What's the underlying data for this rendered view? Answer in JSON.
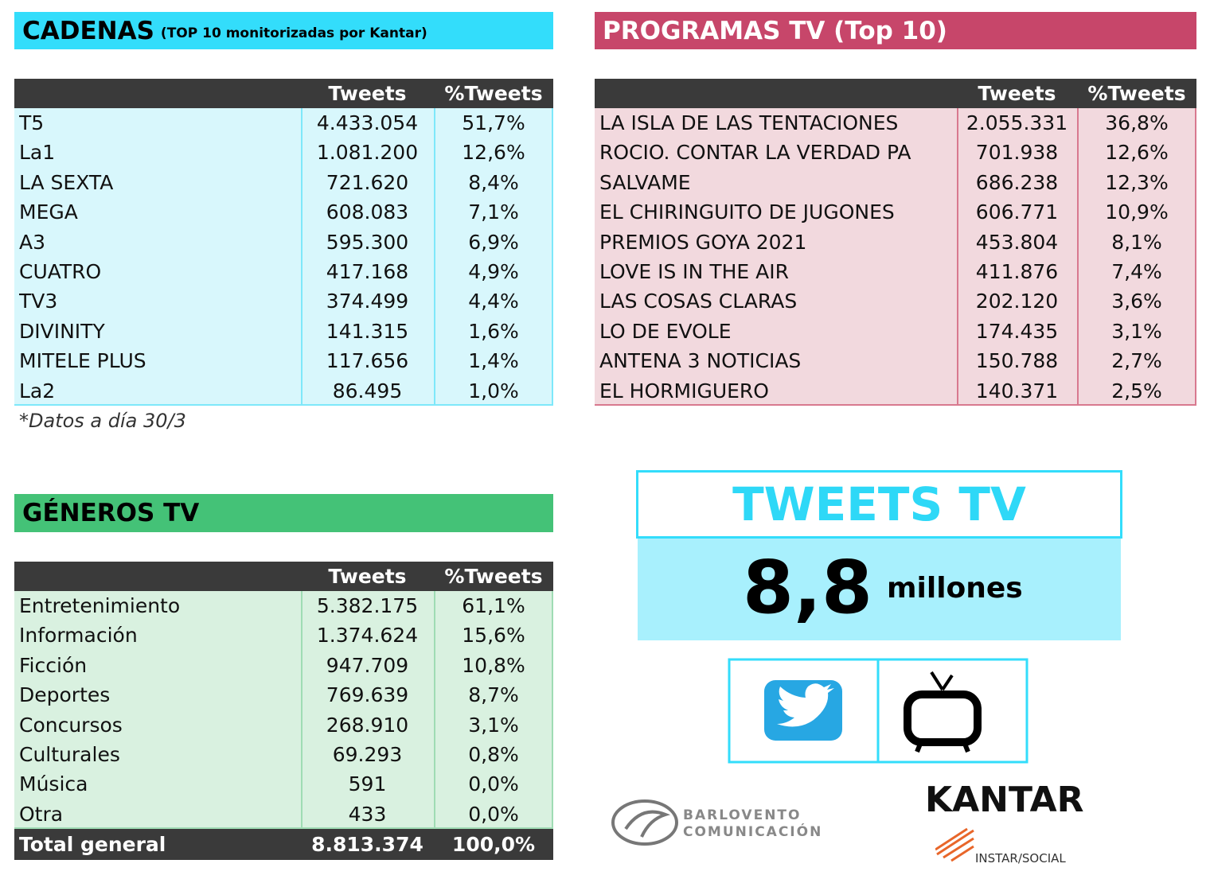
{
  "cadenas": {
    "title": "CADENAS",
    "subtitle": "(TOP 10 monitorizadas por Kantar)",
    "header": [
      "Tweets",
      "%Tweets"
    ],
    "rows": [
      [
        "T5",
        "4.433.054",
        "51,7%"
      ],
      [
        "La1",
        "1.081.200",
        "12,6%"
      ],
      [
        "LA SEXTA",
        "721.620",
        "8,4%"
      ],
      [
        "MEGA",
        "608.083",
        "7,1%"
      ],
      [
        "A3",
        "595.300",
        "6,9%"
      ],
      [
        "CUATRO",
        "417.168",
        "4,9%"
      ],
      [
        "TV3",
        "374.499",
        "4,4%"
      ],
      [
        "DIVINITY",
        "141.315",
        "1,6%"
      ],
      [
        "MITELE PLUS",
        "117.656",
        "1,4%"
      ],
      [
        "La2",
        "86.495",
        "1,0%"
      ]
    ],
    "note": "*Datos a día 30/3"
  },
  "programas": {
    "title": "PROGRAMAS TV (Top 10)",
    "header": [
      "Tweets",
      "%Tweets"
    ],
    "rows": [
      [
        "LA ISLA DE LAS TENTACIONES",
        "2.055.331",
        "36,8%"
      ],
      [
        "ROCIO. CONTAR LA VERDAD PA",
        "701.938",
        "12,6%"
      ],
      [
        "SALVAME",
        "686.238",
        "12,3%"
      ],
      [
        "EL CHIRINGUITO DE JUGONES",
        "606.771",
        "10,9%"
      ],
      [
        "PREMIOS GOYA 2021",
        "453.804",
        "8,1%"
      ],
      [
        "LOVE IS IN THE AIR",
        "411.876",
        "7,4%"
      ],
      [
        "LAS COSAS CLARAS",
        "202.120",
        "3,6%"
      ],
      [
        "LO DE EVOLE",
        "174.435",
        "3,1%"
      ],
      [
        "ANTENA 3 NOTICIAS",
        "150.788",
        "2,7%"
      ],
      [
        "EL HORMIGUERO",
        "140.371",
        "2,5%"
      ]
    ]
  },
  "generos": {
    "title": "GÉNEROS TV",
    "header": [
      "Tweets",
      "%Tweets"
    ],
    "rows": [
      [
        "Entretenimiento",
        "5.382.175",
        "61,1%"
      ],
      [
        "Información",
        "1.374.624",
        "15,6%"
      ],
      [
        "Ficción",
        "947.709",
        "10,8%"
      ],
      [
        "Deportes",
        "769.639",
        "8,7%"
      ],
      [
        "Concursos",
        "268.910",
        "3,1%"
      ],
      [
        "Culturales",
        "69.293",
        "0,8%"
      ],
      [
        "Música",
        "591",
        "0,0%"
      ],
      [
        "Otra",
        "433",
        "0,0%"
      ]
    ],
    "total": [
      "Total general",
      "8.813.374",
      "100,0%"
    ]
  },
  "tweets_tv": {
    "title": "TWEETS TV",
    "value": "8,8",
    "unit": "millones"
  },
  "logos": {
    "barlovento": [
      "BARLOVENTO",
      "COMUNICACIÓN"
    ],
    "kantar": "KANTAR",
    "instar": "INSTAR/SOCIAL"
  }
}
